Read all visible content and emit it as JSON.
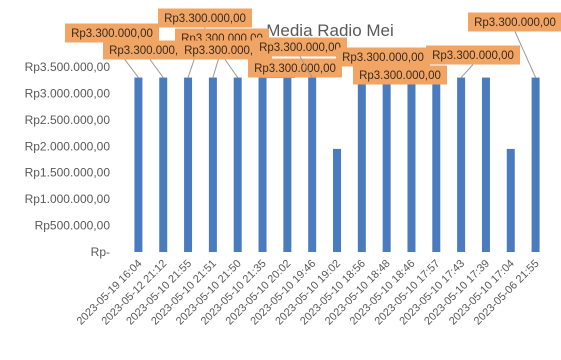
{
  "colors": {
    "bar": "#4a7bbf",
    "label_box": "#f1a565",
    "grid": "#d9d9d9",
    "text": "#595959"
  },
  "chart_data": {
    "type": "bar",
    "title": "Media Radio Mei",
    "xlabel": "",
    "ylabel": "",
    "ylim": [
      0,
      3500000
    ],
    "yticks": [
      0,
      500000,
      1000000,
      1500000,
      2000000,
      2500000,
      3000000,
      3500000
    ],
    "ytick_labels": [
      "Rp-",
      "Rp500.000,00",
      "Rp1.000.000,00",
      "Rp1.500.000,00",
      "Rp2.000.000,00",
      "Rp2.500.000,00",
      "Rp3.000.000,00",
      "Rp3.500.000,00"
    ],
    "grid": false,
    "legend": "none",
    "categories": [
      "2023-05-19 16:04",
      "2023-05-12 21:12",
      "2023-05-10 21:55",
      "2023-05-10 21:51",
      "2023-05-10 21:50",
      "2023-05-10 21:35",
      "2023-05-10 20:02",
      "2023-05-10 19:46",
      "2023-05-10 19:02",
      "2023-05-10 18:56",
      "2023-05-10 18:48",
      "2023-05-10 18:46",
      "2023-05-10 17:57",
      "2023-05-10 17:43",
      "2023-05-10 17:39",
      "2023-05-10 17:04",
      "2023-05-06 21:55"
    ],
    "values": [
      3300000,
      3300000,
      3300000,
      3300000,
      3300000,
      3300000,
      3300000,
      3300000,
      1950000,
      3300000,
      3300000,
      3300000,
      3300000,
      3300000,
      3300000,
      1950000,
      3300000
    ],
    "data_labels": [
      {
        "text": "Rp3.300.000,00",
        "bar": 0
      },
      {
        "text": "Rp3.300.000,00",
        "bar": 1
      },
      {
        "text": "Rp3.300.000,00",
        "bar": 2
      },
      {
        "text": "Rp3.300.000,00",
        "bar": 3
      },
      {
        "text": "Rp3.300.000,00",
        "bar": 4
      },
      {
        "text": "Rp3.300.000,00",
        "bar": 5
      },
      {
        "text": "Rp3.300.000,00",
        "bar": 7
      },
      {
        "text": "Rp3.300.000,00",
        "bar": 10
      },
      {
        "text": "Rp3.300.000,00",
        "bar": 11
      },
      {
        "text": "Rp3.300.000,00",
        "bar": 13
      },
      {
        "text": "Rp3.300.000,00",
        "bar": 16
      }
    ]
  }
}
